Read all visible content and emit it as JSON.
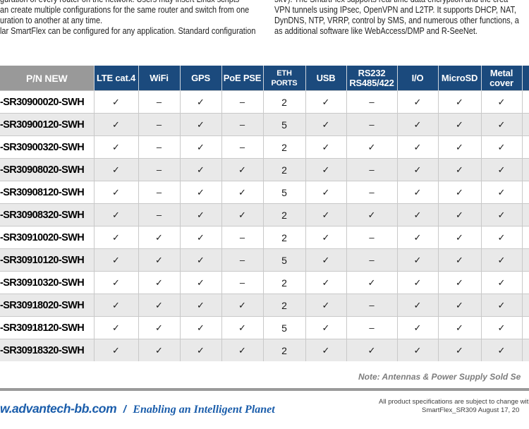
{
  "intro": {
    "left": {
      "lines": [
        "guration of every router on the network. Users may insert Linux scripts",
        "an create multiple configurations for the same router and switch from one",
        "uration to another at any time.",
        "lar SmartFlex can be configured for any application. Standard configuration"
      ]
    },
    "right": {
      "lines": [
        "5kV). The SmartFlex supports real time data encryption and the crea",
        "VPN tunnels using IPsec, OpenVPN and L2TP. It supports DHCP, NAT,",
        "DynDNS, NTP, VRRP, control by SMS, and numerous other functions, a",
        "as additional software like WebAccess/DMP and R-SeeNet."
      ]
    }
  },
  "table": {
    "headers": [
      "P/N NEW",
      "LTE cat.4",
      "WiFi",
      "GPS",
      "PoE PSE",
      "ETH PORTS",
      "USB",
      "RS232\nRS485/422",
      "I/O",
      "MicroSD",
      "Metal\ncover",
      ""
    ],
    "rows": [
      {
        "pn": "-SR30900020-SWH",
        "cells": [
          "✓",
          "–",
          "✓",
          "–",
          "2",
          "✓",
          "–",
          "✓",
          "✓",
          "✓"
        ]
      },
      {
        "pn": "-SR30900120-SWH",
        "cells": [
          "✓",
          "–",
          "✓",
          "–",
          "5",
          "✓",
          "–",
          "✓",
          "✓",
          "✓"
        ]
      },
      {
        "pn": "-SR30900320-SWH",
        "cells": [
          "✓",
          "–",
          "✓",
          "–",
          "2",
          "✓",
          "✓",
          "✓",
          "✓",
          "✓"
        ]
      },
      {
        "pn": "-SR30908020-SWH",
        "cells": [
          "✓",
          "–",
          "✓",
          "✓",
          "2",
          "✓",
          "–",
          "✓",
          "✓",
          "✓"
        ]
      },
      {
        "pn": "-SR30908120-SWH",
        "cells": [
          "✓",
          "–",
          "✓",
          "✓",
          "5",
          "✓",
          "–",
          "✓",
          "✓",
          "✓"
        ]
      },
      {
        "pn": "-SR30908320-SWH",
        "cells": [
          "✓",
          "–",
          "✓",
          "✓",
          "2",
          "✓",
          "✓",
          "✓",
          "✓",
          "✓"
        ]
      },
      {
        "pn": "-SR30910020-SWH",
        "cells": [
          "✓",
          "✓",
          "✓",
          "–",
          "2",
          "✓",
          "–",
          "✓",
          "✓",
          "✓"
        ]
      },
      {
        "pn": "-SR30910120-SWH",
        "cells": [
          "✓",
          "✓",
          "✓",
          "–",
          "5",
          "✓",
          "–",
          "✓",
          "✓",
          "✓"
        ]
      },
      {
        "pn": "-SR30910320-SWH",
        "cells": [
          "✓",
          "✓",
          "✓",
          "–",
          "2",
          "✓",
          "✓",
          "✓",
          "✓",
          "✓"
        ]
      },
      {
        "pn": "-SR30918020-SWH",
        "cells": [
          "✓",
          "✓",
          "✓",
          "✓",
          "2",
          "✓",
          "–",
          "✓",
          "✓",
          "✓"
        ]
      },
      {
        "pn": "-SR30918120-SWH",
        "cells": [
          "✓",
          "✓",
          "✓",
          "✓",
          "5",
          "✓",
          "–",
          "✓",
          "✓",
          "✓"
        ]
      },
      {
        "pn": "-SR30918320-SWH",
        "cells": [
          "✓",
          "✓",
          "✓",
          "✓",
          "2",
          "✓",
          "✓",
          "✓",
          "✓",
          "✓"
        ]
      }
    ]
  },
  "note": {
    "text": "Note: Antennas & Power Supply Sold Se"
  },
  "footer": {
    "site": "w.advantech-bb.com",
    "separator": "/",
    "tagline": "Enabling an Intelligent Planet",
    "disclaimer_line1": "All product specifications are subject to change with",
    "disclaimer_line2": "SmartFlex_SR309 August 17, 20"
  },
  "colors": {
    "header_blue": "#1B4A7D",
    "header_gray": "#999999",
    "row_stripe": "#E9E9E9",
    "footer_blue": "#1A5DAB",
    "rule_gray": "#9A9A9A"
  }
}
